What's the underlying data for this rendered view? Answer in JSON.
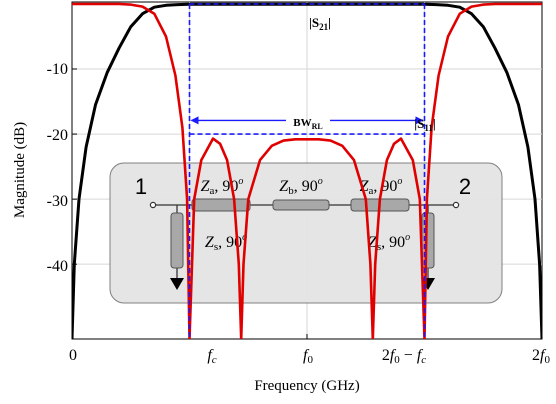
{
  "chart_data": {
    "type": "line",
    "xlabel": "Frequency (GHz)",
    "ylabel": "Magnitude (dB)",
    "ylim": [
      -51.5,
      0.3
    ],
    "xlim": [
      0,
      2
    ],
    "grid": true,
    "y_ticks": [
      {
        "value": -10,
        "label": "-10"
      },
      {
        "value": -20,
        "label": "-20"
      },
      {
        "value": -30,
        "label": "-30"
      },
      {
        "value": -40,
        "label": "-40"
      }
    ],
    "x_ticks": [
      {
        "value": 0,
        "label": "0"
      },
      {
        "value": 0.5,
        "label": "f_c"
      },
      {
        "value": 1.0,
        "label": "f_0"
      },
      {
        "value": 1.5,
        "label": "2f_0 − f_c"
      },
      {
        "value": 2.0,
        "label": "2f_0"
      }
    ],
    "series": [
      {
        "name": "|S21|",
        "color": "#000000",
        "x": [
          0,
          0.01,
          0.03,
          0.06,
          0.1,
          0.15,
          0.2,
          0.25,
          0.3,
          0.35,
          0.4,
          0.45,
          0.5,
          0.6,
          0.7,
          0.8,
          0.9,
          1.0,
          1.1,
          1.2,
          1.3,
          1.4,
          1.5,
          1.55,
          1.6,
          1.65,
          1.7,
          1.75,
          1.8,
          1.85,
          1.9,
          1.94,
          1.97,
          1.99,
          2.0
        ],
        "y": [
          -51.5,
          -40,
          -30,
          -22,
          -15.5,
          -10.5,
          -6.8,
          -3.5,
          -1.5,
          -0.5,
          -0.2,
          -0.1,
          -0.05,
          -0.05,
          -0.05,
          -0.05,
          -0.05,
          -0.05,
          -0.05,
          -0.05,
          -0.05,
          -0.05,
          -0.05,
          -0.1,
          -0.2,
          -0.5,
          -1.5,
          -3.5,
          -6.8,
          -10.5,
          -15.5,
          -22,
          -30,
          -40,
          -51.5
        ]
      },
      {
        "name": "|S11|",
        "color": "#e00000",
        "x": [
          0,
          0.1,
          0.2,
          0.25,
          0.3,
          0.35,
          0.4,
          0.44,
          0.47,
          0.49,
          0.5,
          0.52,
          0.55,
          0.6,
          0.63,
          0.66,
          0.69,
          0.71,
          0.72,
          0.73,
          0.75,
          0.8,
          0.85,
          0.9,
          0.95,
          1.0,
          1.05,
          1.1,
          1.15,
          1.2,
          1.25,
          1.27,
          1.28,
          1.29,
          1.31,
          1.34,
          1.37,
          1.4,
          1.45,
          1.48,
          1.5,
          1.51,
          1.53,
          1.56,
          1.6,
          1.65,
          1.7,
          1.75,
          1.8,
          1.9,
          2.0
        ],
        "y": [
          0,
          0,
          0,
          -0.1,
          -0.4,
          -1.5,
          -5,
          -11,
          -19,
          -30,
          -51.5,
          -30,
          -24,
          -20.7,
          -21.5,
          -24,
          -30,
          -40,
          -51.5,
          -40,
          -30,
          -24,
          -21.8,
          -21,
          -20.8,
          -20.8,
          -20.8,
          -21,
          -21.8,
          -24,
          -30,
          -40,
          -51.5,
          -40,
          -30,
          -24,
          -21.5,
          -20.7,
          -24,
          -30,
          -51.5,
          -30,
          -19,
          -11,
          -5,
          -1.5,
          -0.4,
          -0.1,
          0,
          0,
          0
        ]
      }
    ],
    "annotations": {
      "s21_label": "|S21|",
      "s11_label": "|S11|",
      "bw_label": "BWRL",
      "fc_marker_x": 0.5,
      "f2_marker_x": 1.5,
      "bw_level": -20
    }
  },
  "inset": {
    "port1": "1",
    "port2": "2",
    "za_left": "Z_a, 90^o",
    "zb": "Z_b, 90^o",
    "za_right": "Z_a, 90^o",
    "zs_left": "Z_s, 90^o",
    "zs_right": "Z_s, 90^o"
  },
  "colors": {
    "s11": "#e00000",
    "s21": "#000000",
    "marker": "#1a1aff",
    "inset_bg": "#e4e4e4",
    "component": "#a8a8a8"
  }
}
